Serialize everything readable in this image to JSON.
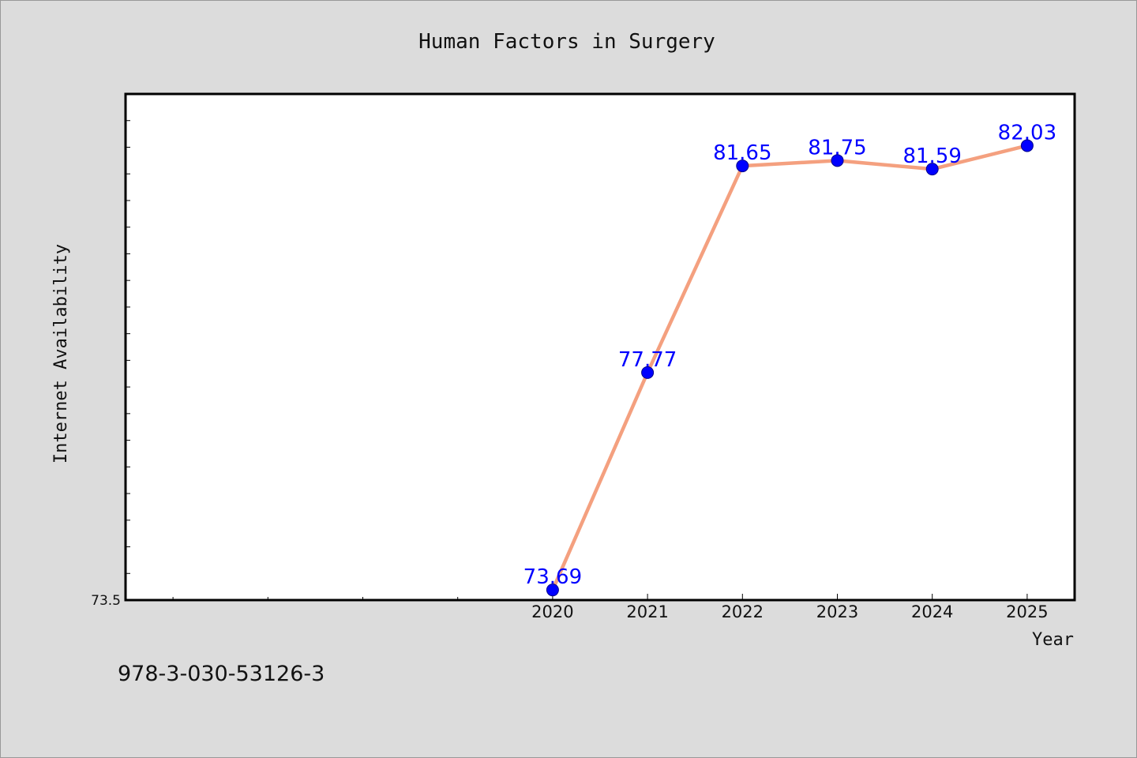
{
  "chart_data": {
    "type": "line",
    "title": "Human Factors in Surgery",
    "xlabel": "Year",
    "ylabel": "Internet Availability",
    "x": [
      "2020",
      "2021",
      "2022",
      "2023",
      "2024",
      "2025"
    ],
    "x_index_range": [
      -4.5,
      5.5
    ],
    "y_tick_label": "73.5",
    "ylim": [
      73.5,
      83.0
    ],
    "grid": false,
    "series": [
      {
        "values": [
          73.69,
          77.77,
          81.65,
          81.75,
          81.59,
          82.03
        ],
        "labels": [
          "73.69",
          "77.77",
          "81.65",
          "81.75",
          "81.59",
          "82.03"
        ],
        "line_color": "#f4a07f",
        "marker_color": "#0000ff"
      }
    ]
  },
  "footer": {
    "isbn": "978-3-030-53126-3"
  },
  "colors": {
    "background": "#dcdcdc",
    "plot_area": "#ffffff",
    "label_color": "#0000ff"
  }
}
